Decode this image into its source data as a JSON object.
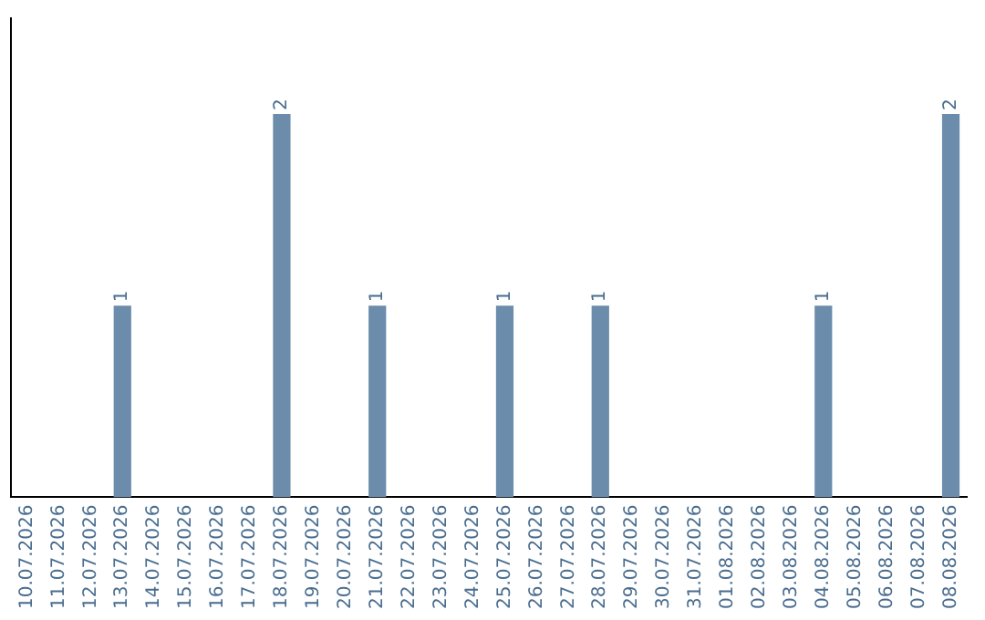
{
  "chart_data": {
    "type": "bar",
    "categories": [
      "10.07.2026",
      "11.07.2026",
      "12.07.2026",
      "13.07.2026",
      "14.07.2026",
      "15.07.2026",
      "16.07.2026",
      "17.07.2026",
      "18.07.2026",
      "19.07.2026",
      "20.07.2026",
      "21.07.2026",
      "22.07.2026",
      "23.07.2026",
      "24.07.2026",
      "25.07.2026",
      "26.07.2026",
      "27.07.2026",
      "28.07.2026",
      "29.07.2026",
      "30.07.2026",
      "31.07.2026",
      "01.08.2026",
      "02.08.2026",
      "03.08.2026",
      "04.08.2026",
      "05.08.2026",
      "06.08.2026",
      "07.08.2026",
      "08.08.2026"
    ],
    "values": [
      0,
      0,
      0,
      1,
      0,
      0,
      0,
      0,
      2,
      0,
      0,
      1,
      0,
      0,
      0,
      1,
      0,
      0,
      1,
      0,
      0,
      0,
      0,
      0,
      0,
      1,
      0,
      0,
      0,
      2
    ],
    "value_labels": [
      null,
      null,
      null,
      "1",
      null,
      null,
      null,
      null,
      "2",
      null,
      null,
      "1",
      null,
      null,
      null,
      "1",
      null,
      null,
      "1",
      null,
      null,
      null,
      null,
      null,
      null,
      "1",
      null,
      null,
      null,
      "2"
    ],
    "color": "#6b8cab",
    "grid": false,
    "legend": false,
    "tick_labels": "x"
  }
}
